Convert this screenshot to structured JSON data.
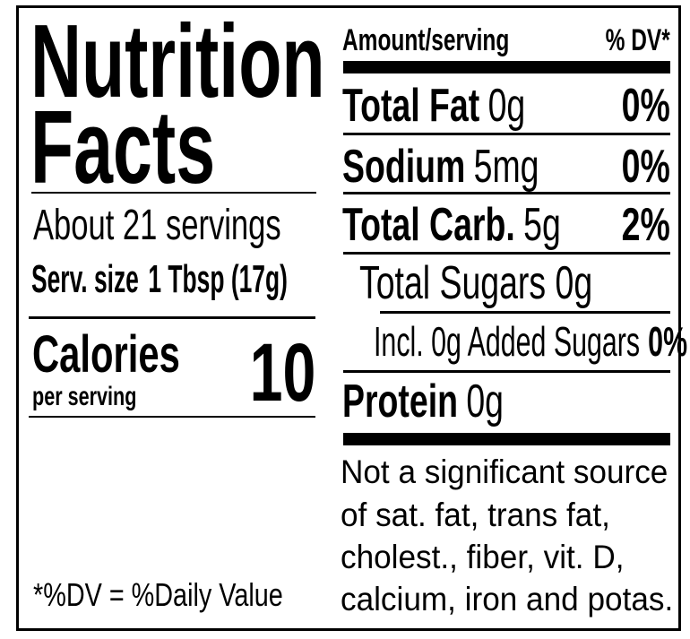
{
  "title_line1": "Nutrition",
  "title_line2": "Facts",
  "servings": "About 21 servings",
  "serving_size_label": "Serv. size",
  "serving_size_value": "1 Tbsp (17g)",
  "calories_label": "Calories",
  "calories_sub": "per serving",
  "calories_value": "10",
  "footnote": "*%DV = %Daily Value",
  "header": {
    "amount": "Amount/serving",
    "dv": "% DV*"
  },
  "nutrients": [
    {
      "name": "Total Fat",
      "amount": "0g",
      "dv": "0%"
    },
    {
      "name": "Sodium",
      "amount": "5mg",
      "dv": "0%"
    },
    {
      "name": "Total Carb.",
      "amount": "5g",
      "dv": "2%"
    },
    {
      "name": "Total Sugars 0g"
    },
    {
      "name": "Incl. 0g Added Sugars",
      "dv": "0%"
    },
    {
      "name": "Protein",
      "amount": "0g"
    }
  ],
  "not_significant": [
    "Not a significant source",
    "of sat. fat, trans fat,",
    "cholest., fiber, vit. D,",
    "calcium, iron and potas."
  ]
}
